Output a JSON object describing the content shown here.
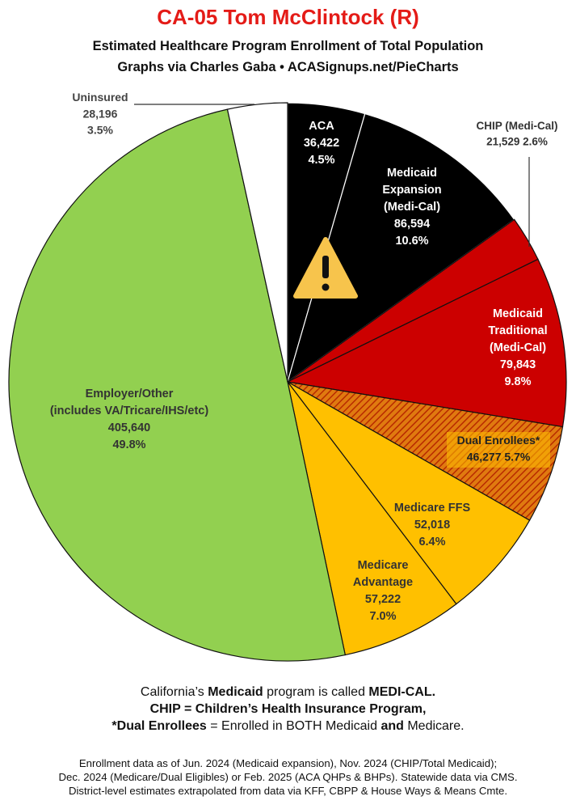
{
  "header": {
    "title": "CA-05 Tom McClintock (R)",
    "subtitle1": "Estimated Healthcare Program Enrollment of Total Population",
    "subtitle2": "Graphs via Charles Gaba  •  ACASignups.net/PieCharts"
  },
  "colors": {
    "title": "#e41b17",
    "aca": "#000000",
    "medicaid_expansion": "#000000",
    "chip": "#cc0000",
    "medicaid_traditional": "#cc0000",
    "dual": "#e07a10",
    "medicare_ffs": "#ffc000",
    "medicare_advantage": "#ffc000",
    "employer": "#92d050",
    "uninsured": "#ffffff"
  },
  "chart_data": {
    "type": "pie",
    "title": "CA-05 Tom McClintock (R)",
    "slices": [
      {
        "key": "aca",
        "lines": [
          "ACA"
        ],
        "value": 36422,
        "value_label": "36,422",
        "pct": 4.5,
        "pct_label": "4.5%"
      },
      {
        "key": "medicaid_expansion",
        "lines": [
          "Medicaid",
          "Expansion",
          "(Medi-Cal)"
        ],
        "value": 86594,
        "value_label": "86,594",
        "pct": 10.6,
        "pct_label": "10.6%"
      },
      {
        "key": "chip",
        "lines": [
          "CHIP (Medi-Cal)"
        ],
        "value": 21529,
        "value_label": "21,529",
        "pct": 2.6,
        "pct_label": "2.6%"
      },
      {
        "key": "medicaid_traditional",
        "lines": [
          "Medicaid",
          "Traditional",
          "(Medi-Cal)"
        ],
        "value": 79843,
        "value_label": "79,843",
        "pct": 9.8,
        "pct_label": "9.8%"
      },
      {
        "key": "dual",
        "lines": [
          "Dual Enrollees*"
        ],
        "value": 46277,
        "value_label": "46,277",
        "pct": 5.7,
        "pct_label": "5.7%"
      },
      {
        "key": "medicare_ffs",
        "lines": [
          "Medicare FFS"
        ],
        "value": 52018,
        "value_label": "52,018",
        "pct": 6.4,
        "pct_label": "6.4%"
      },
      {
        "key": "medicare_advantage",
        "lines": [
          "Medicare",
          "Advantage"
        ],
        "value": 57222,
        "value_label": "57,222",
        "pct": 7.0,
        "pct_label": "7.0%"
      },
      {
        "key": "employer",
        "lines": [
          "Employer/Other",
          "(includes VA/Tricare/IHS/etc)"
        ],
        "value": 405640,
        "value_label": "405,640",
        "pct": 49.8,
        "pct_label": "49.8%"
      },
      {
        "key": "uninsured",
        "lines": [
          "Uninsured"
        ],
        "value": 28196,
        "value_label": "28,196",
        "pct": 3.5,
        "pct_label": "3.5%"
      }
    ],
    "warning_icon": "warning-triangle-icon"
  },
  "notes": {
    "line1_a": "California’s ",
    "line1_b": "Medicaid",
    "line1_c": " program is called ",
    "line1_d": "MEDI-CAL.",
    "line2": "CHIP = Children’s Health Insurance Program,",
    "line3_a": "*Dual Enrollees",
    "line3_b": " = Enrolled in BOTH Medicaid ",
    "line3_c": "and",
    "line3_d": " Medicare."
  },
  "sources": {
    "line1": "Enrollment data as of Jun. 2024 (Medicaid expansion), Nov. 2024 (CHIP/Total Medicaid);",
    "line2": "Dec. 2024 (Medicare/Dual Eligibles) or Feb. 2025 (ACA QHPs & BHPs). Statewide data via CMS.",
    "line3": "District-level estimates extrapolated from data via KFF, CBPP & House Ways & Means Cmte."
  }
}
